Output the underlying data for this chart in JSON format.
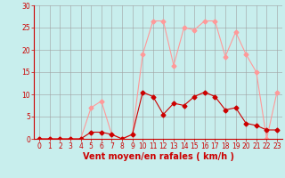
{
  "x": [
    0,
    1,
    2,
    3,
    4,
    5,
    6,
    7,
    8,
    9,
    10,
    11,
    12,
    13,
    14,
    15,
    16,
    17,
    18,
    19,
    20,
    21,
    22,
    23
  ],
  "y_mean": [
    0,
    0,
    0,
    0,
    0,
    1.5,
    1.5,
    1,
    0,
    1,
    10.5,
    9.5,
    5.5,
    8,
    7.5,
    9.5,
    10.5,
    9.5,
    6.5,
    7,
    3.5,
    3,
    2,
    2
  ],
  "y_gust": [
    0,
    0,
    0,
    0,
    0,
    7,
    8.5,
    1,
    0,
    1,
    19,
    26.5,
    26.5,
    16.5,
    25,
    24.5,
    26.5,
    26.5,
    18.5,
    24,
    19,
    15,
    0,
    10.5
  ],
  "xlabel": "Vent moyen/en rafales ( km/h )",
  "ylim": [
    0,
    30
  ],
  "yticks": [
    0,
    5,
    10,
    15,
    20,
    25,
    30
  ],
  "xticks": [
    0,
    1,
    2,
    3,
    4,
    5,
    6,
    7,
    8,
    9,
    10,
    11,
    12,
    13,
    14,
    15,
    16,
    17,
    18,
    19,
    20,
    21,
    22,
    23
  ],
  "bg_color": "#c8eeed",
  "grid_color": "#a0a0a0",
  "line_color_mean": "#cc0000",
  "line_color_gust": "#ff9999",
  "marker": "D",
  "marker_size": 2.5,
  "linewidth": 0.8,
  "tick_fontsize": 5.5,
  "xlabel_fontsize": 7.0
}
